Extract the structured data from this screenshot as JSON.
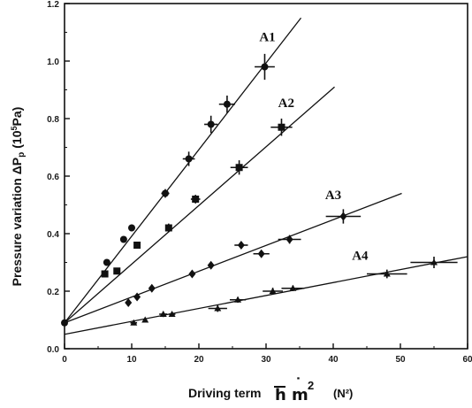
{
  "chart_data": {
    "type": "scatter",
    "title": "",
    "ylabel": "Pressure variation ΔP",
    "ylabel_subscript": "p",
    "ylabel_unit_open": "(10",
    "ylabel_unit_exp": "5",
    "ylabel_unit_close": "Pa)",
    "xlabel": "Driving term",
    "xlabel_symbol_h": "h",
    "xlabel_symbol_m": "m",
    "xlabel_symbol_dot": "˙",
    "xlabel_symbol_exp": "2",
    "xlabel_unit": "(N²)",
    "xlim": [
      0,
      60
    ],
    "ylim": [
      0.0,
      1.2
    ],
    "x_ticks": [
      "0",
      "10",
      "20",
      "30",
      "40",
      "50",
      "60"
    ],
    "y_ticks": [
      "0.0",
      "0.2",
      "0.4",
      "0.6",
      "0.8",
      "1.0",
      "1.2"
    ],
    "grid": false,
    "series": [
      {
        "name": "A1",
        "marker": "circle",
        "points": [
          [
            0,
            0.09
          ],
          [
            6.3,
            0.3
          ],
          [
            8.8,
            0.38
          ],
          [
            10.0,
            0.42
          ],
          [
            15.0,
            0.54
          ],
          [
            18.5,
            0.66
          ],
          [
            21.8,
            0.78
          ],
          [
            24.2,
            0.85
          ],
          [
            29.8,
            0.98
          ]
        ],
        "xerr": [
          0,
          0,
          0,
          0,
          0.6,
          0.9,
          1.0,
          1.2,
          1.5
        ],
        "yerr": [
          0,
          0,
          0,
          0.012,
          0.015,
          0.025,
          0.03,
          0.03,
          0.045
        ],
        "fit": [
          [
            0,
            0.09
          ],
          [
            35.2,
            1.15
          ]
        ]
      },
      {
        "name": "A2",
        "marker": "square",
        "points": [
          [
            6.0,
            0.26
          ],
          [
            7.8,
            0.27
          ],
          [
            10.8,
            0.36
          ],
          [
            15.5,
            0.42
          ],
          [
            19.5,
            0.52
          ],
          [
            26.0,
            0.63
          ],
          [
            32.3,
            0.77
          ]
        ],
        "xerr": [
          0,
          0,
          0,
          0.5,
          0.7,
          1.3,
          1.6
        ],
        "yerr": [
          0,
          0,
          0.01,
          0.015,
          0.015,
          0.025,
          0.03
        ],
        "fit": [
          [
            0,
            0.09
          ],
          [
            40.2,
            0.91
          ]
        ]
      },
      {
        "name": "A3",
        "marker": "diamond",
        "points": [
          [
            9.5,
            0.16
          ],
          [
            10.8,
            0.18
          ],
          [
            13.0,
            0.21
          ],
          [
            19.0,
            0.26
          ],
          [
            21.8,
            0.29
          ],
          [
            26.3,
            0.36
          ],
          [
            29.3,
            0.33
          ],
          [
            33.5,
            0.38
          ],
          [
            41.5,
            0.46
          ]
        ],
        "xerr": [
          0,
          0,
          0,
          0,
          0,
          1.0,
          1.2,
          1.7,
          2.6
        ],
        "yerr": [
          0,
          0,
          0,
          0,
          0,
          0.012,
          0.012,
          0.015,
          0.025
        ],
        "fit": [
          [
            0,
            0.09
          ],
          [
            50.2,
            0.54
          ]
        ]
      },
      {
        "name": "A4",
        "marker": "triangle",
        "points": [
          [
            10.3,
            0.09
          ],
          [
            12.0,
            0.1
          ],
          [
            14.7,
            0.12
          ],
          [
            16.0,
            0.12
          ],
          [
            22.8,
            0.14
          ],
          [
            25.8,
            0.17
          ],
          [
            31.0,
            0.2
          ],
          [
            34.0,
            0.21
          ],
          [
            48.0,
            0.26
          ],
          [
            55.0,
            0.3
          ]
        ],
        "xerr": [
          0.5,
          0,
          0.6,
          0.5,
          1.4,
          1.2,
          1.5,
          1.7,
          3.0,
          3.5
        ],
        "yerr": [
          0.008,
          0,
          0.01,
          0.008,
          0.012,
          0.01,
          0.012,
          0.01,
          0.015,
          0.02
        ],
        "fit": [
          [
            0,
            0.05
          ],
          [
            60,
            0.32
          ]
        ]
      }
    ],
    "annotations": [
      {
        "text": "A1",
        "x": 30.2,
        "y": 1.07
      },
      {
        "text": "A2",
        "x": 33.0,
        "y": 0.84
      },
      {
        "text": "A3",
        "x": 40.0,
        "y": 0.52
      },
      {
        "text": "A4",
        "x": 44.0,
        "y": 0.31
      }
    ]
  }
}
